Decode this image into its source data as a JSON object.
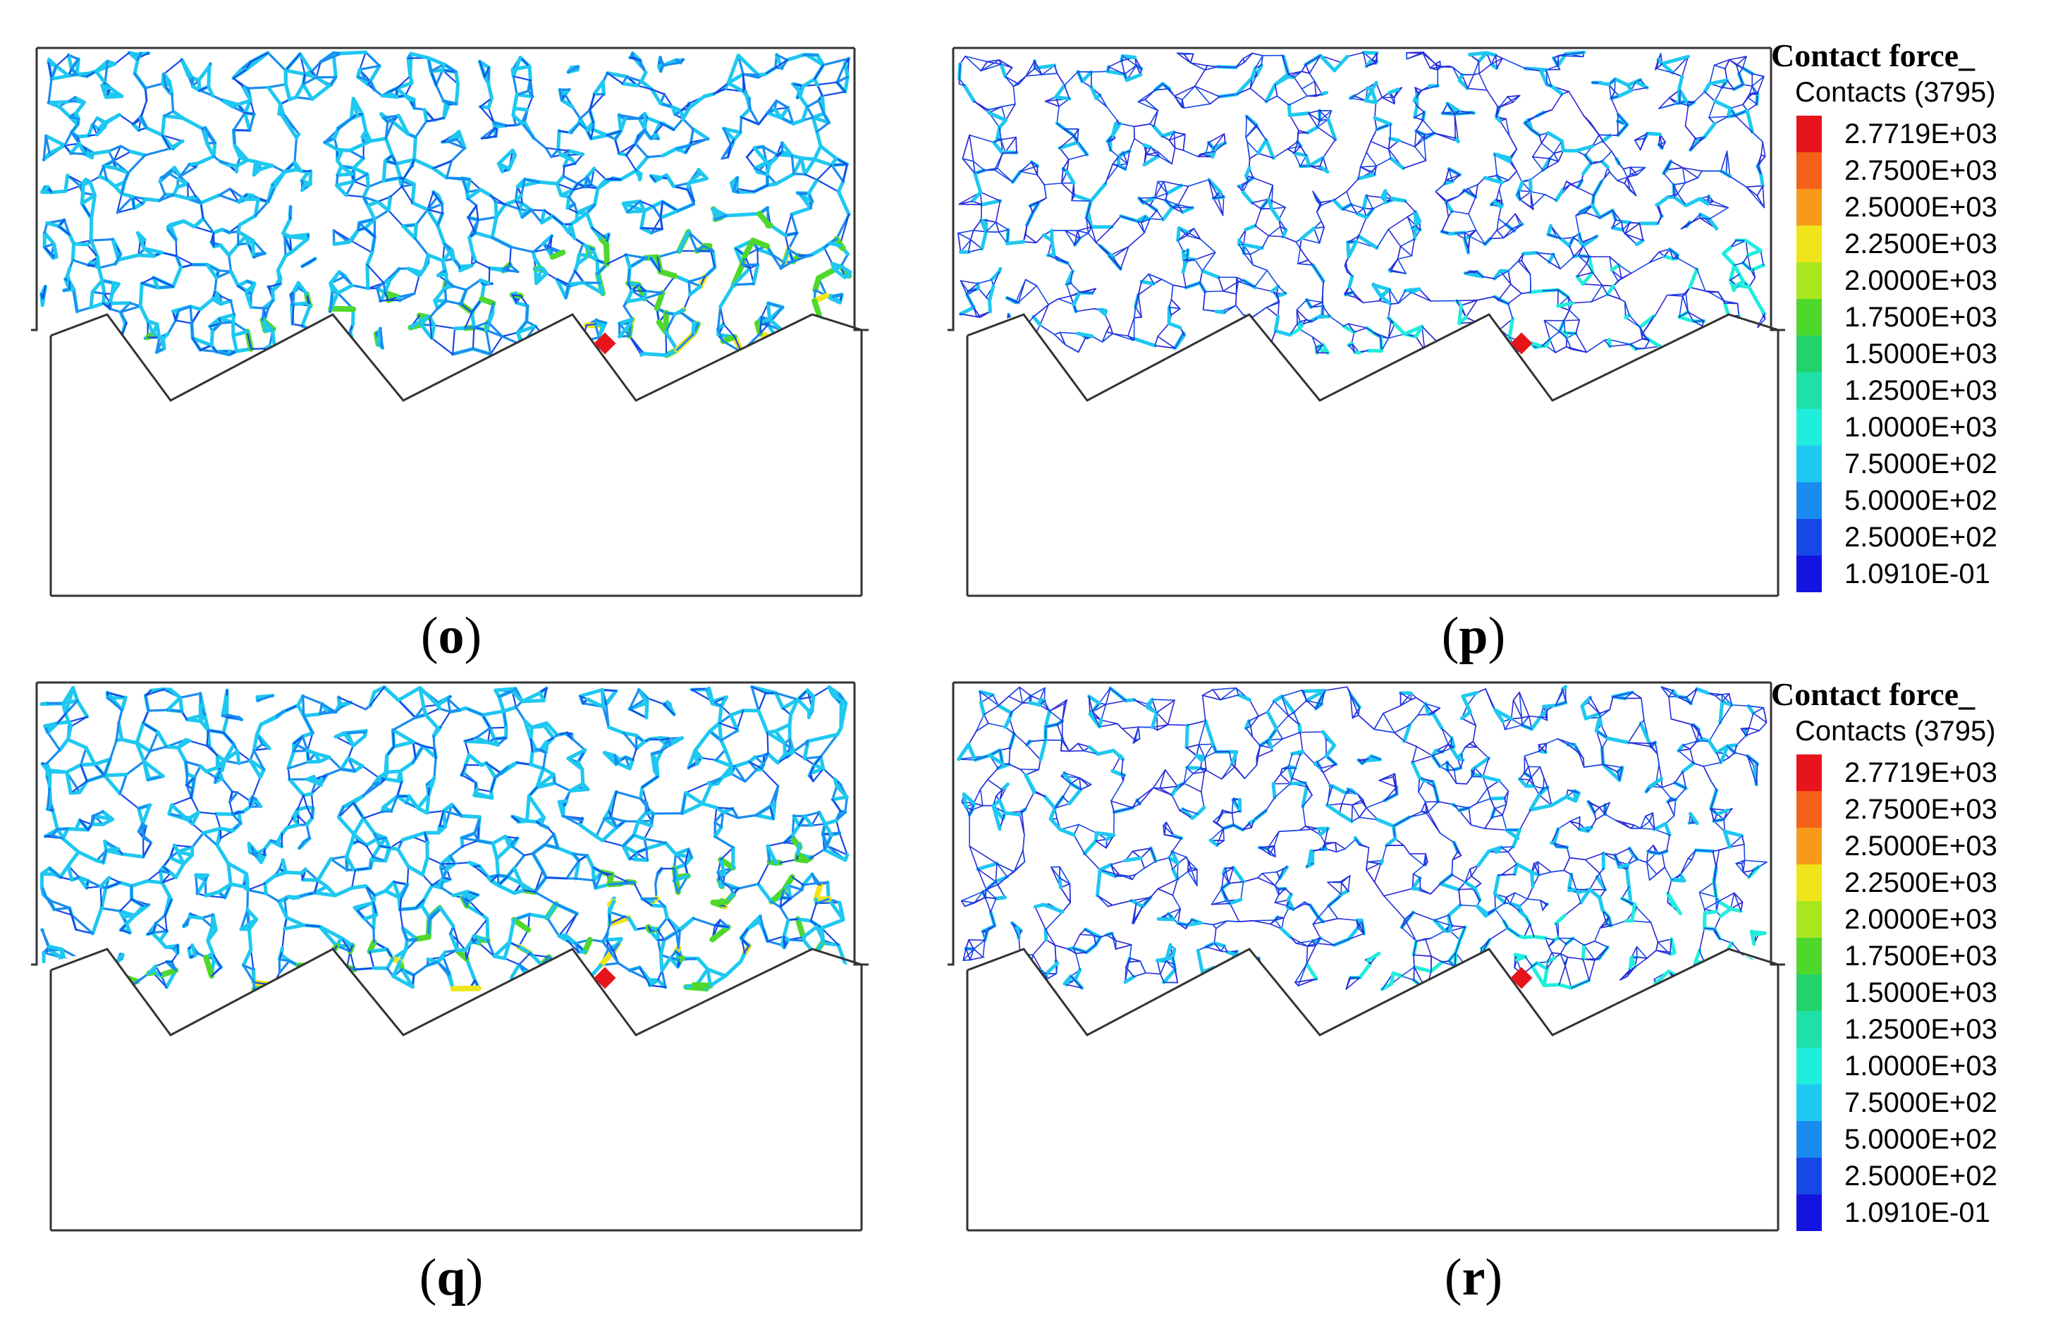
{
  "panels": [
    {
      "id": "o",
      "caption": "o",
      "density": "high"
    },
    {
      "id": "p",
      "caption": "p",
      "density": "low"
    },
    {
      "id": "q",
      "caption": "q",
      "density": "high"
    },
    {
      "id": "r",
      "caption": "r",
      "density": "low"
    }
  ],
  "legend": {
    "title": "Contact force_",
    "subtitle": "Contacts (3795)",
    "entries": [
      {
        "label": "2.7719E+03",
        "color": "#e8141c"
      },
      {
        "label": "2.7500E+03",
        "color": "#f4621a"
      },
      {
        "label": "2.5000E+03",
        "color": "#f79a1c"
      },
      {
        "label": "2.2500E+03",
        "color": "#efe51a"
      },
      {
        "label": "2.0000E+03",
        "color": "#a8e61e"
      },
      {
        "label": "1.7500E+03",
        "color": "#4fd82c"
      },
      {
        "label": "1.5000E+03",
        "color": "#22d26a"
      },
      {
        "label": "1.2500E+03",
        "color": "#1fe0a8"
      },
      {
        "label": "1.0000E+03",
        "color": "#20eedc"
      },
      {
        "label": "7.5000E+02",
        "color": "#1ec8f0"
      },
      {
        "label": "5.0000E+02",
        "color": "#1a8cf0"
      },
      {
        "label": "2.5000E+02",
        "color": "#1648e6"
      },
      {
        "label": "1.0910E-01",
        "color": "#1414e0"
      }
    ]
  },
  "chain_colors": [
    "#e8141c",
    "#f79a1c",
    "#efe51a",
    "#4fd82c",
    "#20eedc",
    "#1ec8f0",
    "#1a8cf0",
    "#1648e6",
    "#2a2ad8"
  ]
}
